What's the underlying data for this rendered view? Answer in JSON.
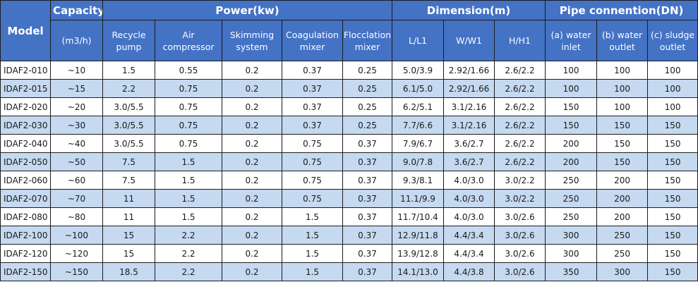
{
  "headers": {
    "model": "Model",
    "capacity": "Capacity",
    "capacity_unit": "(m3/h)",
    "power": "Power(kw)",
    "dimension": "Dimension(m)",
    "pipe": "Pipe connention(DN)",
    "recycle_pump": "Recycle pump",
    "air_compressor": "Air compressor",
    "skimming_system": "Skimming system",
    "coagulation_mixer": "Coagulation mixer",
    "flocclation_mixer": "Flocclation mixer",
    "length": "L/L1",
    "width": "W/W1",
    "height": "H/H1",
    "water_inlet": "(a) water inlet",
    "water_outlet": "(b) water outlet",
    "sludge_outlet": "(c) sludge outlet"
  },
  "rows": [
    {
      "model": "IDAF2-010",
      "capacity": "~10",
      "recycle_pump": "1.5",
      "air_compressor": "0.55",
      "skimming": "0.2",
      "coagulation": "0.37",
      "flocclation": "0.25",
      "l": "5.0/3.9",
      "w": "2.92/1.66",
      "h": "2.6/2.2",
      "inlet": "100",
      "outlet": "100",
      "sludge": "100"
    },
    {
      "model": "IDAF2-015",
      "capacity": "~15",
      "recycle_pump": "2.2",
      "air_compressor": "0.75",
      "skimming": "0.2",
      "coagulation": "0.37",
      "flocclation": "0.25",
      "l": "6.1/5.0",
      "w": "2.92/1.66",
      "h": "2.6/2.2",
      "inlet": "100",
      "outlet": "100",
      "sludge": "100"
    },
    {
      "model": "IDAF2-020",
      "capacity": "~20",
      "recycle_pump": "3.0/5.5",
      "air_compressor": "0.75",
      "skimming": "0.2",
      "coagulation": "0.37",
      "flocclation": "0.25",
      "l": "6.2/5.1",
      "w": "3.1/2.16",
      "h": "2.6/2.2",
      "inlet": "150",
      "outlet": "100",
      "sludge": "100"
    },
    {
      "model": "IDAF2-030",
      "capacity": "~30",
      "recycle_pump": "3.0/5.5",
      "air_compressor": "0.75",
      "skimming": "0.2",
      "coagulation": "0.37",
      "flocclation": "0.25",
      "l": "7.7/6.6",
      "w": "3.1/2.16",
      "h": "2.6/2.2",
      "inlet": "150",
      "outlet": "150",
      "sludge": "150"
    },
    {
      "model": "IDAF2-040",
      "capacity": "~40",
      "recycle_pump": "3.0/5.5",
      "air_compressor": "0.75",
      "skimming": "0.2",
      "coagulation": "0.75",
      "flocclation": "0.37",
      "l": "7.9/6.7",
      "w": "3.6/2.7",
      "h": "2.6/2.2",
      "inlet": "200",
      "outlet": "150",
      "sludge": "150"
    },
    {
      "model": "IDAF2-050",
      "capacity": "~50",
      "recycle_pump": "7.5",
      "air_compressor": "1.5",
      "skimming": "0.2",
      "coagulation": "0.75",
      "flocclation": "0.37",
      "l": "9.0/7.8",
      "w": "3.6/2.7",
      "h": "2.6/2.2",
      "inlet": "200",
      "outlet": "150",
      "sludge": "150"
    },
    {
      "model": "IDAF2-060",
      "capacity": "~60",
      "recycle_pump": "7.5",
      "air_compressor": "1.5",
      "skimming": "0.2",
      "coagulation": "0.75",
      "flocclation": "0.37",
      "l": "9.3/8.1",
      "w": "4.0/3.0",
      "h": "3.0/2.2",
      "inlet": "250",
      "outlet": "200",
      "sludge": "150"
    },
    {
      "model": "IDAF2-070",
      "capacity": "~70",
      "recycle_pump": "11",
      "air_compressor": "1.5",
      "skimming": "0.2",
      "coagulation": "0.75",
      "flocclation": "0.37",
      "l": "11.1/9.9",
      "w": "4.0/3.0",
      "h": "3.0/2.2",
      "inlet": "250",
      "outlet": "200",
      "sludge": "150"
    },
    {
      "model": "IDAF2-080",
      "capacity": "~80",
      "recycle_pump": "11",
      "air_compressor": "1.5",
      "skimming": "0.2",
      "coagulation": "1.5",
      "flocclation": "0.37",
      "l": "11.7/10.4",
      "w": "4.0/3.0",
      "h": "3.0/2.6",
      "inlet": "250",
      "outlet": "200",
      "sludge": "150"
    },
    {
      "model": "IDAF2-100",
      "capacity": "~100",
      "recycle_pump": "15",
      "air_compressor": "2.2",
      "skimming": "0.2",
      "coagulation": "1.5",
      "flocclation": "0.37",
      "l": "12.9/11.8",
      "w": "4.4/3.4",
      "h": "3.0/2.6",
      "inlet": "300",
      "outlet": "250",
      "sludge": "150"
    },
    {
      "model": "IDAF2-120",
      "capacity": "~120",
      "recycle_pump": "15",
      "air_compressor": "2.2",
      "skimming": "0.2",
      "coagulation": "1.5",
      "flocclation": "0.37",
      "l": "13.9/12.8",
      "w": "4.4/3.4",
      "h": "3.0/2.6",
      "inlet": "300",
      "outlet": "250",
      "sludge": "150"
    },
    {
      "model": "IDAF2-150",
      "capacity": "~150",
      "recycle_pump": "18.5",
      "air_compressor": "2.2",
      "skimming": "0.2",
      "coagulation": "1.5",
      "flocclation": "0.37",
      "l": "14.1/13.0",
      "w": "4.4/3.8",
      "h": "3.0/2.6",
      "inlet": "350",
      "outlet": "300",
      "sludge": "150"
    }
  ]
}
